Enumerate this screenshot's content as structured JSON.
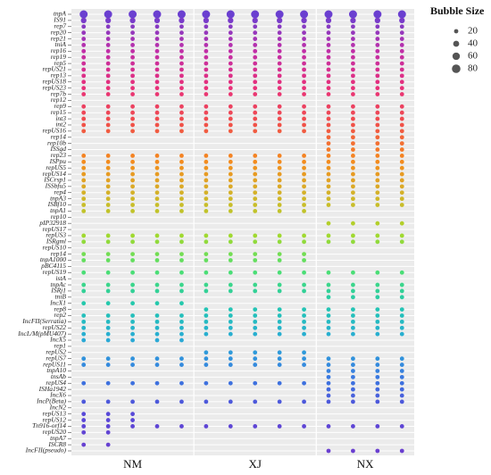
{
  "chart_data": {
    "type": "bubble-matrix",
    "legend_title": "Bubble Size",
    "legend": {
      "values": [
        20,
        40,
        60,
        80
      ]
    },
    "size_max": 80,
    "x_groups": [
      {
        "label": "NM",
        "size": 5
      },
      {
        "label": "XJ",
        "size": 5
      },
      {
        "label": "NX",
        "size": 4
      }
    ],
    "color_scale": [
      "#6a3fd0",
      "#c02fa8",
      "#e8307a",
      "#f0504a",
      "#f58a1e",
      "#d2b52a",
      "#a8d82a",
      "#4ee070",
      "#22c8b0",
      "#2aa8d8",
      "#3a78e0",
      "#5848d8",
      "#6a3fd0"
    ],
    "grid": true,
    "categories": [
      "tnpA",
      "IS91",
      "rep7",
      "rep20",
      "rep21",
      "tniA",
      "rep16",
      "rep19",
      "rep5",
      "repUS21",
      "rep13",
      "repUS18",
      "repUS23",
      "rep7b",
      "rep12",
      "rep9",
      "rep15",
      "int3",
      "int2",
      "repUS16",
      "rep14",
      "rep10b",
      "ISSgd",
      "rep23",
      "ISPpu",
      "repUS5",
      "repUS14",
      "ISCrsp1",
      "ISSbfu5",
      "rep4",
      "tnpA3",
      "ISBf10",
      "tnpA1",
      "rep10",
      "pIP32918",
      "repUS17",
      "repUS3",
      "ISRgml",
      "repUS10",
      "rep14",
      "tnpA1000",
      "pBC4115",
      "repUS19",
      "istA",
      "tnpAc",
      "ISRj1",
      "tniB",
      "IncX1",
      "rep8",
      "rep2",
      "IncFII(Serratia)",
      "repUS22",
      "IncL/M(pMU407)",
      "IncX5",
      "rep1",
      "repUS2",
      "repUS7",
      "repUS11",
      "tnpA10",
      "tnsAb",
      "repUS4",
      "ISHa1942",
      "IncX6",
      "IncP(Beta)",
      "IncN2",
      "repUS13",
      "repUS12",
      "Tn916-orf14",
      "repUS20",
      "tnpA7",
      "ISCR8",
      "IncFII(pseudo)"
    ],
    "values": [
      [
        70,
        70,
        70,
        70,
        70,
        70,
        70,
        70,
        70,
        70,
        70,
        70,
        70,
        70
      ],
      [
        35,
        35,
        35,
        35,
        35,
        35,
        35,
        35,
        35,
        35,
        35,
        35,
        35,
        35
      ],
      [
        20,
        20,
        20,
        20,
        20,
        20,
        20,
        20,
        20,
        20,
        20,
        20,
        20,
        20
      ],
      [
        20,
        20,
        20,
        20,
        20,
        20,
        20,
        20,
        20,
        20,
        20,
        20,
        20,
        20
      ],
      [
        20,
        20,
        20,
        20,
        20,
        20,
        20,
        20,
        20,
        20,
        20,
        20,
        20,
        20
      ],
      [
        20,
        20,
        20,
        20,
        20,
        20,
        20,
        20,
        20,
        20,
        20,
        20,
        20,
        20
      ],
      [
        20,
        20,
        20,
        20,
        20,
        20,
        20,
        20,
        20,
        20,
        20,
        20,
        20,
        20
      ],
      [
        20,
        20,
        20,
        20,
        20,
        20,
        20,
        20,
        20,
        20,
        20,
        20,
        20,
        20
      ],
      [
        20,
        20,
        20,
        20,
        20,
        20,
        20,
        20,
        20,
        20,
        20,
        20,
        20,
        20
      ],
      [
        20,
        20,
        20,
        20,
        20,
        20,
        20,
        20,
        20,
        20,
        20,
        20,
        20,
        20
      ],
      [
        20,
        20,
        20,
        20,
        20,
        20,
        20,
        20,
        20,
        20,
        20,
        20,
        20,
        20
      ],
      [
        20,
        20,
        20,
        20,
        20,
        20,
        20,
        20,
        20,
        20,
        20,
        20,
        20,
        20
      ],
      [
        20,
        20,
        20,
        20,
        20,
        20,
        20,
        20,
        20,
        20,
        20,
        20,
        20,
        20
      ],
      [
        20,
        20,
        20,
        20,
        20,
        20,
        20,
        20,
        20,
        20,
        20,
        20,
        20,
        20
      ],
      [
        null,
        null,
        null,
        null,
        null,
        null,
        null,
        null,
        null,
        null,
        null,
        null,
        null,
        null
      ],
      [
        20,
        20,
        20,
        20,
        20,
        20,
        20,
        20,
        20,
        20,
        20,
        20,
        20,
        20
      ],
      [
        20,
        20,
        20,
        20,
        20,
        20,
        20,
        20,
        20,
        20,
        20,
        20,
        20,
        20
      ],
      [
        20,
        20,
        20,
        20,
        20,
        20,
        20,
        20,
        20,
        20,
        20,
        20,
        20,
        20
      ],
      [
        20,
        20,
        20,
        20,
        20,
        20,
        20,
        20,
        20,
        20,
        20,
        20,
        20,
        20
      ],
      [
        20,
        20,
        20,
        20,
        20,
        20,
        20,
        20,
        20,
        20,
        20,
        20,
        20,
        20
      ],
      [
        null,
        null,
        null,
        null,
        null,
        null,
        null,
        null,
        null,
        null,
        20,
        20,
        20,
        20
      ],
      [
        null,
        null,
        null,
        null,
        null,
        null,
        null,
        null,
        null,
        null,
        20,
        20,
        20,
        20
      ],
      [
        null,
        null,
        null,
        null,
        null,
        null,
        null,
        null,
        null,
        null,
        20,
        20,
        20,
        20
      ],
      [
        20,
        20,
        20,
        20,
        20,
        20,
        20,
        20,
        20,
        20,
        20,
        20,
        20,
        20
      ],
      [
        20,
        20,
        20,
        20,
        20,
        20,
        20,
        20,
        20,
        20,
        20,
        20,
        20,
        20
      ],
      [
        20,
        20,
        20,
        20,
        20,
        20,
        20,
        20,
        20,
        20,
        20,
        20,
        20,
        20
      ],
      [
        20,
        20,
        20,
        20,
        20,
        20,
        20,
        20,
        20,
        20,
        20,
        20,
        20,
        20
      ],
      [
        20,
        20,
        20,
        20,
        20,
        20,
        20,
        20,
        20,
        20,
        20,
        20,
        20,
        20
      ],
      [
        20,
        20,
        20,
        20,
        20,
        20,
        20,
        20,
        20,
        20,
        20,
        20,
        20,
        20
      ],
      [
        20,
        20,
        20,
        20,
        20,
        20,
        20,
        20,
        20,
        20,
        20,
        20,
        20,
        20
      ],
      [
        20,
        20,
        20,
        20,
        20,
        20,
        20,
        20,
        20,
        20,
        20,
        20,
        20,
        20
      ],
      [
        20,
        20,
        20,
        20,
        20,
        20,
        20,
        20,
        20,
        20,
        20,
        20,
        20,
        20
      ],
      [
        20,
        20,
        20,
        20,
        20,
        20,
        20,
        20,
        20,
        20,
        null,
        null,
        null,
        null
      ],
      [
        null,
        null,
        null,
        null,
        null,
        null,
        null,
        null,
        null,
        null,
        null,
        null,
        null,
        null
      ],
      [
        null,
        null,
        null,
        null,
        null,
        null,
        null,
        null,
        null,
        null,
        20,
        20,
        20,
        20
      ],
      [
        null,
        null,
        null,
        null,
        null,
        null,
        null,
        null,
        null,
        null,
        null,
        null,
        null,
        null
      ],
      [
        20,
        20,
        20,
        20,
        20,
        20,
        20,
        20,
        20,
        20,
        20,
        20,
        20,
        20
      ],
      [
        20,
        20,
        20,
        20,
        20,
        20,
        20,
        20,
        20,
        20,
        20,
        20,
        20,
        20
      ],
      [
        null,
        null,
        null,
        null,
        null,
        null,
        null,
        null,
        null,
        null,
        null,
        null,
        null,
        null
      ],
      [
        20,
        20,
        20,
        20,
        20,
        20,
        20,
        20,
        20,
        20,
        null,
        null,
        null,
        null
      ],
      [
        20,
        20,
        20,
        20,
        20,
        20,
        20,
        20,
        20,
        20,
        null,
        null,
        null,
        null
      ],
      [
        null,
        null,
        null,
        null,
        null,
        null,
        null,
        null,
        null,
        null,
        null,
        null,
        null,
        null
      ],
      [
        20,
        20,
        20,
        20,
        20,
        20,
        20,
        20,
        20,
        20,
        20,
        20,
        20,
        20
      ],
      [
        null,
        null,
        null,
        null,
        null,
        null,
        null,
        null,
        null,
        null,
        null,
        null,
        null,
        null
      ],
      [
        20,
        20,
        20,
        20,
        20,
        20,
        20,
        20,
        20,
        20,
        20,
        20,
        20,
        20
      ],
      [
        20,
        20,
        20,
        20,
        20,
        20,
        20,
        20,
        20,
        20,
        20,
        20,
        20,
        20
      ],
      [
        null,
        null,
        null,
        null,
        null,
        null,
        null,
        null,
        null,
        null,
        20,
        20,
        20,
        20
      ],
      [
        20,
        20,
        20,
        20,
        20,
        null,
        null,
        null,
        null,
        null,
        null,
        null,
        null,
        null
      ],
      [
        null,
        null,
        null,
        null,
        null,
        20,
        20,
        20,
        20,
        20,
        20,
        20,
        20,
        20
      ],
      [
        20,
        20,
        20,
        20,
        20,
        20,
        20,
        20,
        20,
        20,
        20,
        20,
        20,
        20
      ],
      [
        20,
        20,
        20,
        20,
        20,
        20,
        20,
        20,
        20,
        20,
        20,
        20,
        20,
        20
      ],
      [
        20,
        20,
        20,
        20,
        20,
        20,
        20,
        20,
        20,
        20,
        20,
        20,
        20,
        20
      ],
      [
        20,
        20,
        20,
        20,
        20,
        20,
        20,
        20,
        20,
        20,
        20,
        20,
        20,
        20
      ],
      [
        20,
        20,
        20,
        20,
        20,
        null,
        null,
        null,
        null,
        null,
        null,
        null,
        null,
        null
      ],
      [
        null,
        null,
        null,
        null,
        null,
        null,
        null,
        null,
        null,
        null,
        null,
        null,
        null,
        null
      ],
      [
        null,
        null,
        null,
        null,
        null,
        20,
        20,
        20,
        20,
        20,
        null,
        null,
        null,
        null
      ],
      [
        20,
        20,
        20,
        20,
        20,
        20,
        20,
        20,
        20,
        20,
        20,
        20,
        20,
        20
      ],
      [
        20,
        20,
        20,
        20,
        20,
        20,
        20,
        20,
        20,
        20,
        20,
        20,
        20,
        20
      ],
      [
        null,
        null,
        null,
        null,
        null,
        null,
        null,
        null,
        null,
        null,
        20,
        20,
        20,
        20
      ],
      [
        null,
        null,
        null,
        null,
        null,
        null,
        null,
        null,
        null,
        null,
        20,
        20,
        20,
        20
      ],
      [
        20,
        20,
        20,
        20,
        20,
        20,
        20,
        20,
        20,
        20,
        20,
        20,
        20,
        20
      ],
      [
        null,
        null,
        null,
        null,
        null,
        null,
        null,
        null,
        null,
        null,
        20,
        20,
        20,
        20
      ],
      [
        null,
        null,
        null,
        null,
        null,
        null,
        null,
        null,
        null,
        null,
        20,
        20,
        20,
        20
      ],
      [
        20,
        20,
        20,
        20,
        20,
        20,
        20,
        20,
        20,
        20,
        20,
        20,
        20,
        20
      ],
      [
        null,
        null,
        null,
        null,
        null,
        null,
        null,
        null,
        null,
        null,
        null,
        null,
        null,
        null
      ],
      [
        20,
        20,
        20,
        null,
        null,
        null,
        null,
        null,
        null,
        null,
        null,
        null,
        null,
        null
      ],
      [
        20,
        20,
        20,
        null,
        null,
        null,
        null,
        null,
        null,
        null,
        null,
        null,
        null,
        null
      ],
      [
        20,
        20,
        20,
        20,
        20,
        20,
        20,
        20,
        20,
        20,
        20,
        20,
        20,
        20
      ],
      [
        20,
        20,
        null,
        null,
        null,
        null,
        null,
        null,
        null,
        null,
        null,
        null,
        null,
        null
      ],
      [
        null,
        null,
        null,
        null,
        null,
        null,
        null,
        null,
        null,
        null,
        null,
        null,
        null,
        null
      ],
      [
        20,
        20,
        null,
        null,
        null,
        null,
        null,
        null,
        null,
        null,
        null,
        null,
        null,
        null
      ],
      [
        null,
        null,
        null,
        null,
        null,
        null,
        null,
        null,
        null,
        null,
        20,
        20,
        20,
        20
      ]
    ]
  }
}
